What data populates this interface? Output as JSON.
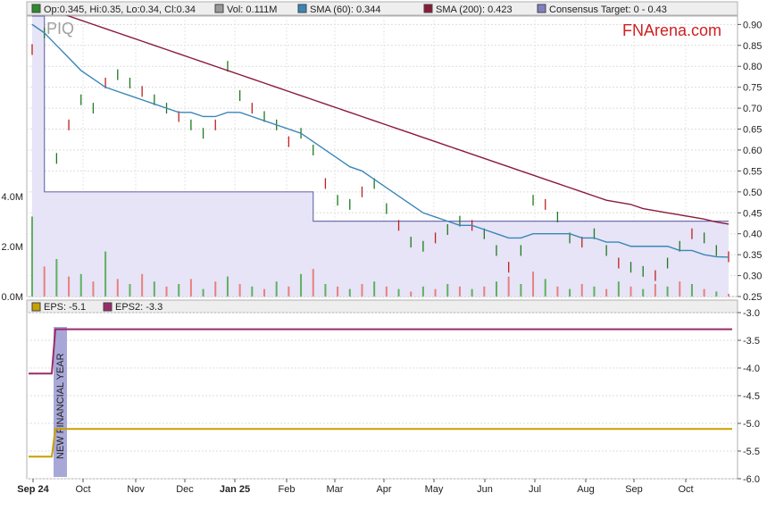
{
  "header": {
    "legend": [
      {
        "label": "Op:0.345, Hi:0.35, Lo:0.34, Cl:0.34",
        "color": "#2e8b2e"
      },
      {
        "label": "Vol: 0.111M",
        "color": "#999999"
      },
      {
        "label": "SMA (60): 0.344",
        "color": "#3a86b8"
      },
      {
        "label": "SMA (200): 0.423",
        "color": "#8b1a3a"
      },
      {
        "label": "Consensus Target: 0 - 0.43",
        "color": "#8080c0"
      }
    ],
    "ticker": "PIQ",
    "brand": "FNArena.com"
  },
  "lower_legend": [
    {
      "label": "EPS: -5.1",
      "color": "#c8a000"
    },
    {
      "label": "EPS2: -3.3",
      "color": "#9b2a6a"
    }
  ],
  "annotation": "NEW FINANCIAL YEAR",
  "chart_data": [
    {
      "type": "line",
      "name": "price",
      "x_tick_labels": [
        "Sep 24",
        "Oct",
        "Nov",
        "Dec",
        "Jan 25",
        "Feb",
        "Mar",
        "Apr",
        "May",
        "Jun",
        "Jul",
        "Aug",
        "Sep",
        "Oct"
      ],
      "y_tick_labels": [
        "0.25",
        "0.30",
        "0.35",
        "0.40",
        "0.45",
        "0.50",
        "0.55",
        "0.60",
        "0.65",
        "0.70",
        "0.75",
        "0.80",
        "0.85",
        "0.90"
      ],
      "ylim": [
        0.25,
        0.92
      ],
      "vol_tick_labels": [
        "0.0M",
        "2.0M",
        "4.0M"
      ],
      "grid": true,
      "series": [
        {
          "name": "Price",
          "color": "#2e8b2e",
          "values": [
            0.84,
            0.88,
            0.58,
            0.66,
            0.72,
            0.7,
            0.76,
            0.78,
            0.76,
            0.74,
            0.72,
            0.7,
            0.68,
            0.66,
            0.64,
            0.66,
            0.8,
            0.73,
            0.7,
            0.68,
            0.66,
            0.62,
            0.64,
            0.6,
            0.52,
            0.48,
            0.47,
            0.5,
            0.52,
            0.46,
            0.42,
            0.38,
            0.37,
            0.39,
            0.41,
            0.43,
            0.42,
            0.4,
            0.36,
            0.32,
            0.36,
            0.48,
            0.47,
            0.44,
            0.39,
            0.38,
            0.4,
            0.36,
            0.33,
            0.32,
            0.31,
            0.3,
            0.33,
            0.37,
            0.4,
            0.39,
            0.36,
            0.345
          ]
        },
        {
          "name": "SMA (60)",
          "color": "#3a86b8",
          "values": [
            0.9,
            0.88,
            0.85,
            0.82,
            0.79,
            0.77,
            0.75,
            0.74,
            0.73,
            0.72,
            0.71,
            0.7,
            0.69,
            0.69,
            0.68,
            0.68,
            0.69,
            0.69,
            0.68,
            0.67,
            0.66,
            0.65,
            0.64,
            0.62,
            0.6,
            0.58,
            0.56,
            0.55,
            0.53,
            0.51,
            0.49,
            0.47,
            0.45,
            0.44,
            0.43,
            0.42,
            0.42,
            0.41,
            0.4,
            0.39,
            0.39,
            0.4,
            0.4,
            0.4,
            0.4,
            0.39,
            0.39,
            0.38,
            0.38,
            0.37,
            0.37,
            0.37,
            0.37,
            0.36,
            0.36,
            0.35,
            0.345,
            0.344
          ]
        },
        {
          "name": "SMA (200)",
          "color": "#8b1a3a",
          "values": [
            0.95,
            0.94,
            0.93,
            0.92,
            0.91,
            0.9,
            0.89,
            0.88,
            0.87,
            0.86,
            0.85,
            0.84,
            0.83,
            0.82,
            0.81,
            0.8,
            0.79,
            0.78,
            0.77,
            0.76,
            0.75,
            0.74,
            0.73,
            0.72,
            0.71,
            0.7,
            0.69,
            0.68,
            0.67,
            0.66,
            0.65,
            0.64,
            0.63,
            0.62,
            0.61,
            0.6,
            0.59,
            0.58,
            0.57,
            0.56,
            0.55,
            0.54,
            0.53,
            0.52,
            0.51,
            0.5,
            0.49,
            0.48,
            0.475,
            0.47,
            0.46,
            0.455,
            0.45,
            0.445,
            0.44,
            0.435,
            0.428,
            0.423
          ]
        }
      ],
      "consensus_target": {
        "name": "Consensus Target",
        "segments": [
          {
            "from": 0,
            "to": 1,
            "value": 0.92
          },
          {
            "from": 1,
            "to": 23,
            "value": 0.5
          },
          {
            "from": 23,
            "to": 57,
            "value": 0.43
          }
        ]
      },
      "volume_millions": [
        3.2,
        1.2,
        1.5,
        0.8,
        0.9,
        0.6,
        1.8,
        0.7,
        0.5,
        0.9,
        0.6,
        0.4,
        0.5,
        0.7,
        0.3,
        0.6,
        0.8,
        0.5,
        0.4,
        0.3,
        0.6,
        0.4,
        0.9,
        1.1,
        0.5,
        0.4,
        0.3,
        0.5,
        0.6,
        0.4,
        0.3,
        0.2,
        0.4,
        0.3,
        0.5,
        0.4,
        0.3,
        0.4,
        0.6,
        0.8,
        0.5,
        1.0,
        0.7,
        0.4,
        0.3,
        0.5,
        0.4,
        0.3,
        0.6,
        0.4,
        0.3,
        0.5,
        0.4,
        0.6,
        0.5,
        0.3,
        0.2,
        0.11
      ]
    },
    {
      "type": "line",
      "name": "eps",
      "y_tick_labels": [
        "-3.0",
        "-3.5",
        "-4.0",
        "-4.5",
        "-5.0",
        "-5.5",
        "-6.0"
      ],
      "ylim": [
        -6.0,
        -3.0
      ],
      "grid": true,
      "series": [
        {
          "name": "EPS",
          "color": "#c8a000",
          "values_before": -5.6,
          "values_after": -5.1
        },
        {
          "name": "EPS2",
          "color": "#9b2a6a",
          "values_before": -4.1,
          "values_after": -3.3
        }
      ]
    }
  ]
}
